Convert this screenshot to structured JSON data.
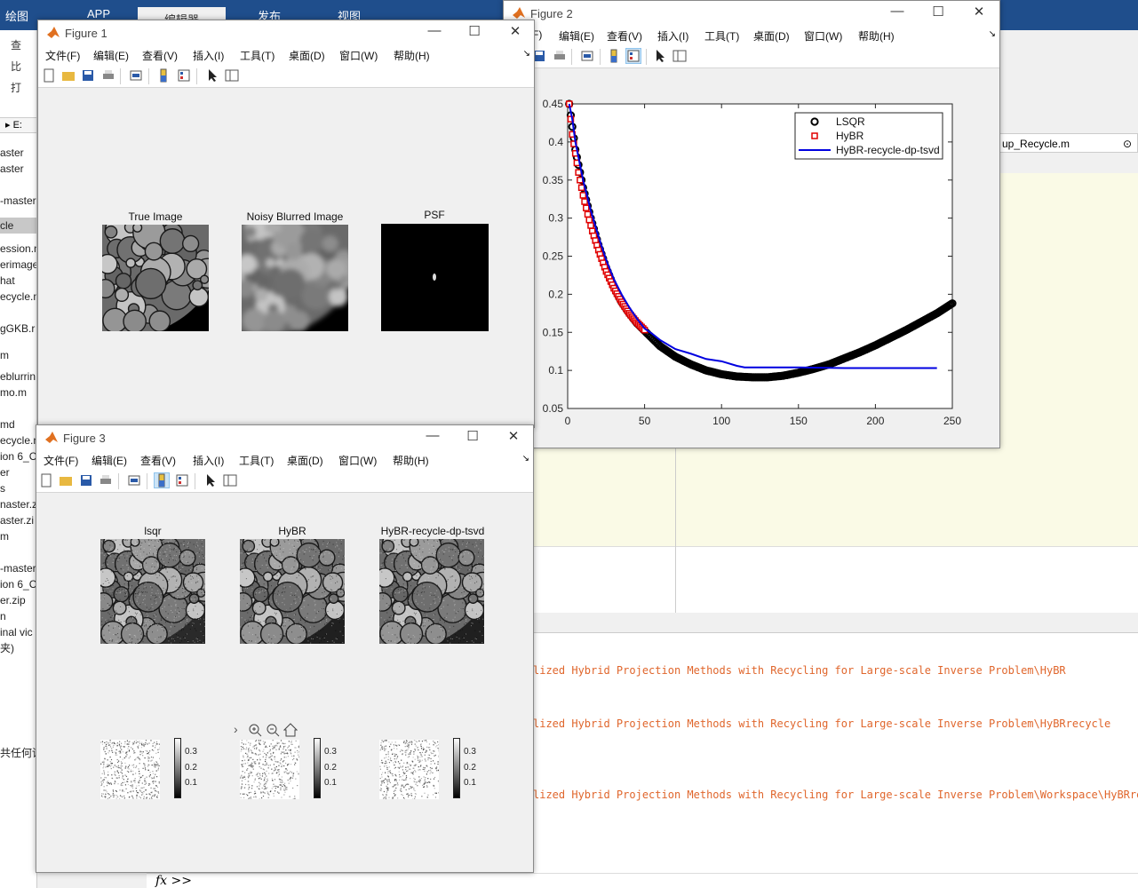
{
  "matlab": {
    "ribbon_tabs": [
      "绘图",
      "APP",
      "编辑器",
      "发布",
      "视图"
    ],
    "toolbar_items": [
      "查",
      "比",
      "打"
    ],
    "path_label": "E:",
    "files": [
      "aster",
      "aster",
      "-master",
      "cle",
      "ession.n",
      "erimage",
      "hat",
      "ecycle.m",
      "gGKB.r",
      "m",
      "eblurrin",
      "mo.m",
      "md",
      "ecycle.n",
      "ion 6_C",
      "er",
      "s",
      "naster.z",
      "aster.zi",
      "m",
      "-master",
      "ion 6_C",
      "er.zip",
      "n",
      "inal vic",
      "夹)",
      "共任何详"
    ],
    "editor_tab": "up_Recycle.m",
    "cmd_lines": [
      "lized Hybrid Projection Methods with Recycling for Large-scale Inverse Problem\\HyBR",
      "lized Hybrid Projection Methods with Recycling for Large-scale Inverse Problem\\HyBRrecycle",
      "lized Hybrid Projection Methods with Recycling for Large-scale Inverse Problem\\Workspace\\HyBRrecyc"
    ],
    "cmd_prompt": "fx >>"
  },
  "menus": [
    "文件(F)",
    "编辑(E)",
    "查看(V)",
    "插入(I)",
    "工具(T)",
    "桌面(D)",
    "窗口(W)",
    "帮助(H)"
  ],
  "window_controls": {
    "minimize": "—",
    "maximize": "☐",
    "close": "✕"
  },
  "figure1": {
    "title": "Figure 1",
    "axes": [
      "True Image",
      "Noisy Blurred Image",
      "PSF"
    ]
  },
  "figure3": {
    "title": "Figure 3",
    "axes": [
      "lsqr",
      "HyBR",
      "HyBR-recycle-dp-tsvd"
    ],
    "cbar_ticks": [
      "0.3",
      "0.2",
      "0.1"
    ],
    "axes_toolbar": "›"
  },
  "figure2": {
    "title": "Figure 2",
    "menus": [
      "F)",
      "编辑(E)",
      "查看(V)",
      "插入(I)",
      "工具(T)",
      "桌面(D)",
      "窗口(W)",
      "帮助(H)"
    ]
  },
  "chart_data": {
    "type": "line",
    "title": "",
    "xlabel": "",
    "ylabel": "",
    "xlim": [
      0,
      250
    ],
    "ylim": [
      0.05,
      0.45
    ],
    "xticks": [
      0,
      50,
      100,
      150,
      200,
      250
    ],
    "yticks": [
      0.05,
      0.1,
      0.15,
      0.2,
      0.25,
      0.3,
      0.35,
      0.4,
      0.45
    ],
    "legend": {
      "position": "top-right",
      "entries": [
        "LSQR",
        "HyBR",
        "HyBR-recycle-dp-tsvd"
      ]
    },
    "series": [
      {
        "name": "LSQR",
        "color": "#000000",
        "marker": "o",
        "x": [
          1,
          5,
          10,
          15,
          20,
          25,
          30,
          35,
          40,
          45,
          50,
          60,
          70,
          80,
          90,
          100,
          110,
          120,
          130,
          140,
          150,
          160,
          170,
          180,
          190,
          200,
          210,
          220,
          230,
          240,
          250
        ],
        "y": [
          0.45,
          0.39,
          0.34,
          0.3,
          0.265,
          0.235,
          0.21,
          0.19,
          0.175,
          0.162,
          0.152,
          0.132,
          0.118,
          0.108,
          0.1,
          0.095,
          0.092,
          0.091,
          0.091,
          0.093,
          0.097,
          0.102,
          0.108,
          0.116,
          0.124,
          0.133,
          0.143,
          0.153,
          0.164,
          0.175,
          0.188
        ]
      },
      {
        "name": "HyBR",
        "color": "#e00000",
        "marker": "s",
        "x": [
          1,
          2,
          3,
          5,
          7,
          10,
          13,
          16,
          20,
          25,
          30,
          35,
          40,
          45,
          50
        ],
        "y": [
          0.45,
          0.43,
          0.41,
          0.385,
          0.36,
          0.33,
          0.305,
          0.283,
          0.258,
          0.23,
          0.208,
          0.19,
          0.175,
          0.163,
          0.153
        ]
      },
      {
        "name": "HyBR-recycle-dp-tsvd",
        "color": "#0000e0",
        "marker": "",
        "x": [
          1,
          3,
          5,
          8,
          10,
          15,
          20,
          25,
          30,
          35,
          40,
          45,
          50,
          55,
          60,
          65,
          70,
          80,
          90,
          100,
          110,
          115,
          120,
          130,
          150,
          180,
          200,
          220,
          240
        ],
        "y": [
          0.45,
          0.43,
          0.4,
          0.37,
          0.35,
          0.31,
          0.276,
          0.245,
          0.22,
          0.2,
          0.183,
          0.168,
          0.155,
          0.148,
          0.14,
          0.134,
          0.128,
          0.122,
          0.115,
          0.112,
          0.106,
          0.104,
          0.104,
          0.104,
          0.104,
          0.103,
          0.103,
          0.103,
          0.103
        ]
      }
    ]
  }
}
